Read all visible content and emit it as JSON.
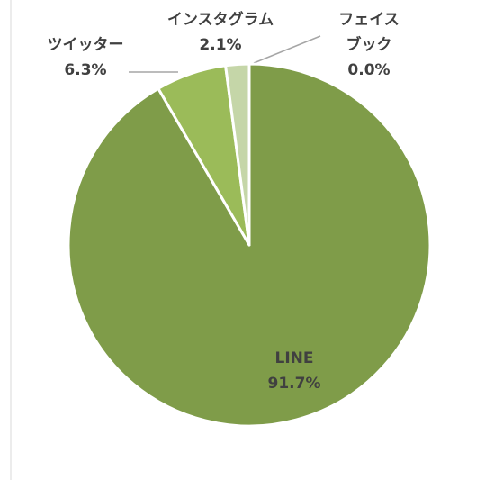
{
  "chart_data": {
    "type": "pie",
    "categories": [
      "LINE",
      "ツイッター",
      "インスタグラム",
      "フェイスブック"
    ],
    "values": [
      91.7,
      6.3,
      2.1,
      0.0
    ],
    "value_labels": [
      "91.7%",
      "6.3%",
      "2.1%",
      "0.0%"
    ],
    "colors": [
      "#7f9c49",
      "#9bbb59",
      "#c5d6a8",
      "#dfe9cf"
    ]
  }
}
